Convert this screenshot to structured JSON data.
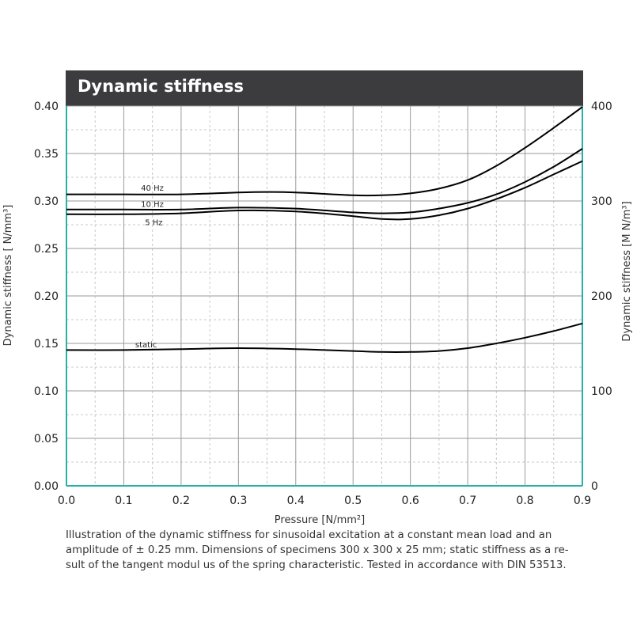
{
  "colors": {
    "title_bg": "#3c3c3e",
    "axis": "#2ab0a8",
    "grid_major": "#9a9a9a",
    "grid_minor": "#c8c8c8",
    "line": "#000000"
  },
  "chart_data": {
    "type": "line",
    "title": "Dynamic stiffness",
    "xlabel": "Pressure [N/mm²]",
    "ylabel": "Dynamic stiffness  [ N/mm³]",
    "y2label": "Dynamic stiffness  [M N/m³]",
    "xlim": [
      0,
      0.9
    ],
    "ylim": [
      0,
      0.4
    ],
    "y2lim": [
      0,
      400
    ],
    "x_ticks": [
      "0.0",
      "0.1",
      "0.2",
      "0.3",
      "0.4",
      "0.5",
      "0.6",
      "0.7",
      "0.8",
      "0.9"
    ],
    "y_ticks": [
      "0.00",
      "0.05",
      "0.10",
      "0.15",
      "0.20",
      "0.25",
      "0.30",
      "0.35",
      "0.40"
    ],
    "y2_ticks": [
      "0",
      "100",
      "200",
      "300",
      "400"
    ],
    "grid": true,
    "series": [
      {
        "name": "40 Hz",
        "x": [
          0.0,
          0.1,
          0.2,
          0.3,
          0.35,
          0.4,
          0.5,
          0.55,
          0.6,
          0.65,
          0.7,
          0.75,
          0.8,
          0.85,
          0.9
        ],
        "y": [
          0.307,
          0.307,
          0.307,
          0.309,
          0.3095,
          0.309,
          0.306,
          0.306,
          0.308,
          0.313,
          0.322,
          0.337,
          0.356,
          0.377,
          0.399
        ]
      },
      {
        "name": "10 Hz",
        "x": [
          0.0,
          0.1,
          0.2,
          0.3,
          0.4,
          0.5,
          0.55,
          0.6,
          0.65,
          0.7,
          0.75,
          0.8,
          0.85,
          0.9
        ],
        "y": [
          0.291,
          0.291,
          0.291,
          0.293,
          0.292,
          0.288,
          0.287,
          0.288,
          0.292,
          0.298,
          0.307,
          0.32,
          0.336,
          0.355
        ]
      },
      {
        "name": "5 Hz",
        "x": [
          0.0,
          0.1,
          0.2,
          0.3,
          0.4,
          0.5,
          0.55,
          0.6,
          0.65,
          0.7,
          0.75,
          0.8,
          0.85,
          0.9
        ],
        "y": [
          0.286,
          0.286,
          0.287,
          0.29,
          0.289,
          0.284,
          0.281,
          0.281,
          0.285,
          0.292,
          0.302,
          0.314,
          0.328,
          0.342
        ]
      },
      {
        "name": "static",
        "x": [
          0.0,
          0.1,
          0.2,
          0.3,
          0.4,
          0.5,
          0.55,
          0.6,
          0.65,
          0.7,
          0.75,
          0.8,
          0.85,
          0.9
        ],
        "y": [
          0.143,
          0.143,
          0.144,
          0.145,
          0.144,
          0.142,
          0.141,
          0.141,
          0.142,
          0.145,
          0.15,
          0.156,
          0.163,
          0.171
        ]
      }
    ],
    "label_positions": [
      {
        "text": "40 Hz",
        "x": 0.13,
        "y": 0.314
      },
      {
        "text": "10 Hz",
        "x": 0.13,
        "y": 0.297
      },
      {
        "text": "5 Hz",
        "x": 0.137,
        "y": 0.278
      },
      {
        "text": "static",
        "x": 0.12,
        "y": 0.149
      }
    ]
  },
  "caption": [
    "Illustration of the dynamic stiffness for sinusoidal excitation at a constant mean load and an",
    "amplitude of ± 0.25 mm.  Dimensions of specimens 300 x 300 x 25 mm; static stiffness as a re-",
    "sult of the tangent   modul us of the  spring characteristic. Tested in accordance with DIN 53513."
  ]
}
